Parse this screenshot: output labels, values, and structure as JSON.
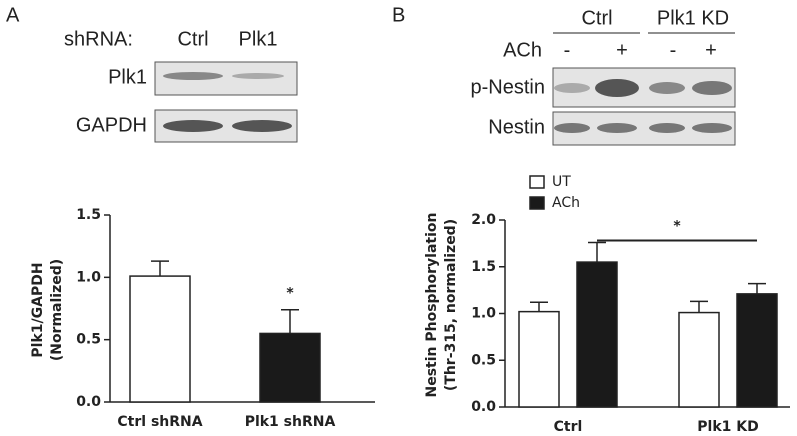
{
  "panel_labels": [
    "A",
    "B"
  ],
  "blot_a": {
    "header": "shRNA:",
    "lanes": [
      "Ctrl",
      "Plk1"
    ],
    "rows": [
      "Plk1",
      "GAPDH"
    ]
  },
  "blot_b": {
    "groups": [
      "Ctrl",
      "Plk1 KD"
    ],
    "treatment": "ACh",
    "lanes": [
      "-",
      "+",
      "-",
      "+"
    ],
    "rows": [
      "p-Nestin",
      "Nestin"
    ]
  },
  "chart_data": [
    {
      "type": "bar",
      "ylabel": [
        "Plk1/GAPDH",
        "(Normalized)"
      ],
      "categories": [
        "Ctrl shRNA",
        "Plk1 shRNA"
      ],
      "values": [
        1.01,
        0.55
      ],
      "errors": [
        0.12,
        0.19
      ],
      "colors": [
        "#ffffff",
        "#1a1a1a"
      ],
      "ylim": [
        0,
        1.5
      ],
      "yticks": [
        {
          "value": 0,
          "label": "0.0"
        },
        {
          "value": 0.5,
          "label": "0.5"
        },
        {
          "value": 1,
          "label": "1.0"
        },
        {
          "value": 1.5,
          "label": "1.5"
        }
      ],
      "annotation": "*"
    },
    {
      "type": "bar",
      "ylabel": [
        "Nestin Phosphorylation",
        "(Thr-315, normalized)"
      ],
      "categories": [
        "Ctrl",
        "Plk1 KD"
      ],
      "series": [
        {
          "name": "UT",
          "color": "#ffffff",
          "values": [
            1.02,
            1.01
          ],
          "errors": [
            0.1,
            0.12
          ]
        },
        {
          "name": "ACh",
          "color": "#1a1a1a",
          "values": [
            1.55,
            1.21
          ],
          "errors": [
            0.21,
            0.11
          ]
        }
      ],
      "ylim": [
        0,
        2
      ],
      "yticks": [
        {
          "value": 0,
          "label": "0.0"
        },
        {
          "value": 0.5,
          "label": "0.5"
        },
        {
          "value": 1,
          "label": "1.0"
        },
        {
          "value": 1.5,
          "label": "1.5"
        },
        {
          "value": 2,
          "label": "2.0"
        }
      ],
      "annotation": "*"
    }
  ]
}
